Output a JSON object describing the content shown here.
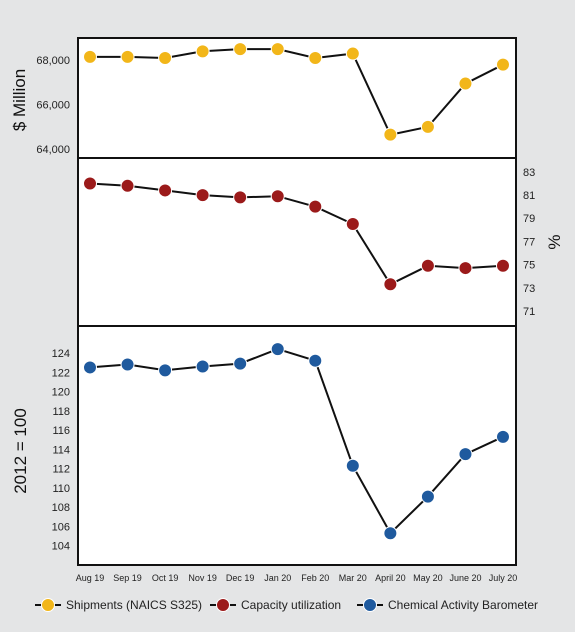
{
  "chart_data": {
    "type": "line",
    "categories": [
      "Aug 19",
      "Sep 19",
      "Oct 19",
      "Nov 19",
      "Dec 19",
      "Jan 20",
      "Feb 20",
      "Mar 20",
      "April 20",
      "May 20",
      "June 20",
      "July 20"
    ],
    "panels": [
      {
        "series_name": "Shipments (NAICS S325)",
        "ylabel": "$ Million",
        "axis_side": "left",
        "ylim": [
          63600,
          69000
        ],
        "ticks": [
          64000,
          66000,
          68000
        ],
        "tick_labels": [
          "64,000",
          "66,000",
          "68,000"
        ],
        "color": "#f2b619",
        "values": [
          68150,
          68150,
          68100,
          68400,
          68500,
          68500,
          68100,
          68300,
          64650,
          65000,
          66950,
          67800
        ]
      },
      {
        "series_name": "Capacity utilization",
        "ylabel": "%",
        "axis_side": "right",
        "ylim": [
          69.7,
          84.2
        ],
        "ticks": [
          71,
          73,
          75,
          77,
          79,
          81,
          83
        ],
        "tick_labels": [
          "71",
          "73",
          "75",
          "77",
          "79",
          "81",
          "83"
        ],
        "color": "#9b1a1a",
        "values": [
          82.0,
          81.8,
          81.4,
          81.0,
          80.8,
          80.9,
          80.0,
          78.5,
          73.3,
          74.9,
          74.7,
          74.9
        ]
      },
      {
        "series_name": "Chemical Activity Barometer",
        "ylabel": "2012 = 100",
        "axis_side": "left",
        "ylim": [
          102,
          126.8
        ],
        "ticks": [
          104,
          106,
          108,
          110,
          112,
          114,
          116,
          118,
          120,
          122,
          124
        ],
        "tick_labels": [
          "104",
          "106",
          "108",
          "110",
          "112",
          "114",
          "116",
          "118",
          "120",
          "122",
          "124"
        ],
        "color": "#1f5a9e",
        "values": [
          122.5,
          122.8,
          122.2,
          122.6,
          122.9,
          124.4,
          123.2,
          112.3,
          105.3,
          109.1,
          113.5,
          115.3
        ]
      }
    ],
    "legend": [
      {
        "label": "Shipments (NAICS S325)",
        "color": "#f2b619"
      },
      {
        "label": "Capacity utilization",
        "color": "#9b1a1a"
      },
      {
        "label": "Chemical Activity Barometer",
        "color": "#1f5a9e"
      }
    ],
    "legend_position": "bottom",
    "grid": false
  }
}
